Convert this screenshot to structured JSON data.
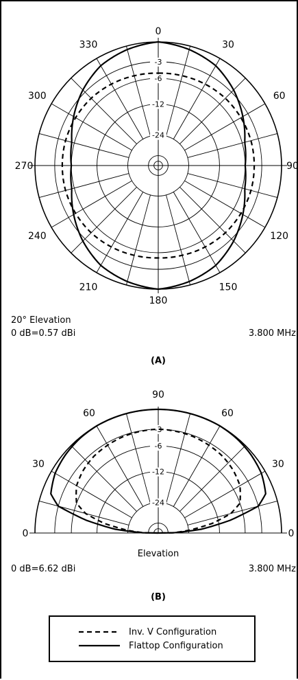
{
  "panels": {
    "a": {
      "caption": "(A)",
      "info_left_1": "20° Elevation",
      "info_left_2": "0 dB=0.57 dBi",
      "info_right": "3.800 MHz"
    },
    "b": {
      "caption": "(B)",
      "axis_label": "Elevation",
      "info_left": "0 dB=6.62 dBi",
      "info_right": "3.800 MHz"
    }
  },
  "legend": {
    "items": [
      {
        "label": "Inv. V Configuration",
        "style": "dashed"
      },
      {
        "label": "Flattop Configuration",
        "style": "solid"
      }
    ]
  },
  "chart_data": [
    {
      "type": "polar",
      "title": "",
      "angle_labels": [
        "0",
        "30",
        "60",
        "90",
        "120",
        "150",
        "180",
        "210",
        "240",
        "270",
        "300",
        "330"
      ],
      "ring_labels": [
        "-3",
        "-6",
        "-12",
        "-24"
      ],
      "r_unit": "dB",
      "series": [
        {
          "name": "Flattop Configuration",
          "line": "solid",
          "theta": [
            0,
            15,
            30,
            45,
            60,
            75,
            90,
            105,
            120,
            135,
            150,
            165,
            180,
            195,
            210,
            225,
            240,
            255,
            270,
            285,
            300,
            315,
            330,
            345
          ],
          "r_db": [
            0,
            -0.5,
            -1.2,
            -2.5,
            -4,
            -5.5,
            -6,
            -5.5,
            -4,
            -2.5,
            -1.2,
            -0.5,
            0,
            -0.5,
            -1.2,
            -2.5,
            -4,
            -5.5,
            -6,
            -5.5,
            -4,
            -2.5,
            -1.2,
            -0.5
          ]
        },
        {
          "name": "Inv. V Configuration",
          "line": "dashed",
          "theta": [
            0,
            15,
            30,
            45,
            60,
            75,
            90,
            105,
            120,
            135,
            150,
            165,
            180,
            195,
            210,
            225,
            240,
            255,
            270,
            285,
            300,
            315,
            330,
            345
          ],
          "r_db": [
            -5,
            -4.9,
            -4.7,
            -4.5,
            -4.4,
            -4.3,
            -4.3,
            -4.3,
            -4.4,
            -4.5,
            -4.7,
            -4.9,
            -5,
            -4.9,
            -4.7,
            -4.5,
            -4.4,
            -4.3,
            -4.3,
            -4.3,
            -4.4,
            -4.5,
            -4.7,
            -4.9
          ]
        }
      ]
    },
    {
      "type": "polar",
      "title": "",
      "angle_labels": [
        "0",
        "30",
        "60",
        "90",
        "60",
        "30",
        "0"
      ],
      "ring_labels": [
        "-3",
        "-6",
        "-12",
        "-24"
      ],
      "r_unit": "dB",
      "series": [
        {
          "name": "Flattop Configuration",
          "line": "solid",
          "elevation": [
            0,
            5,
            10,
            15,
            20,
            30,
            40,
            50,
            60,
            70,
            80,
            90
          ],
          "r_db": [
            -40,
            -18,
            -9,
            -3,
            -1.3,
            -0.6,
            -0.3,
            -0.1,
            0,
            0,
            0,
            0
          ]
        },
        {
          "name": "Inv. V Configuration",
          "line": "dashed",
          "elevation": [
            0,
            5,
            10,
            15,
            20,
            30,
            40,
            50,
            60,
            70,
            80,
            90
          ],
          "r_db": [
            -40,
            -24,
            -14,
            -8.5,
            -6,
            -4.6,
            -4,
            -3.6,
            -3.4,
            -3.2,
            -3.1,
            -3
          ]
        }
      ]
    }
  ]
}
